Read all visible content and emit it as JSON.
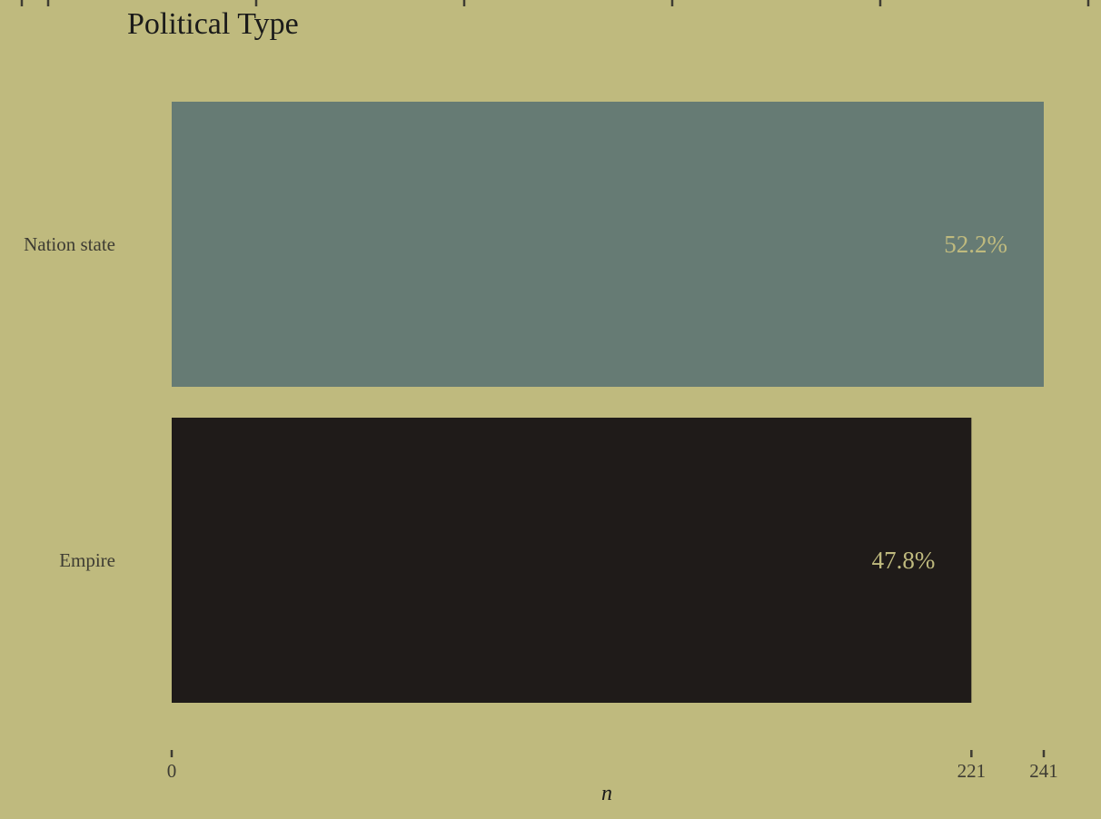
{
  "chart_data": {
    "type": "bar",
    "orientation": "horizontal",
    "title": "Political Type",
    "xlabel": "n",
    "ylabel": "",
    "categories": [
      "Nation state",
      "Empire"
    ],
    "values": [
      241,
      221
    ],
    "labels": [
      "52.2%",
      "47.8%"
    ],
    "xticks": [
      "0",
      "221",
      "241"
    ],
    "xtick_values": [
      0,
      221,
      241
    ],
    "xlim": [
      0,
      241
    ],
    "grid": false,
    "legend": "none"
  },
  "colors": {
    "background": "#bfba7e",
    "bars": [
      "#667b74",
      "#1f1b19"
    ],
    "bar_label": "#bfba7e",
    "axis_text": "#3e3c33",
    "title": "#1a1a1a",
    "ticks": "#3e3c33"
  }
}
